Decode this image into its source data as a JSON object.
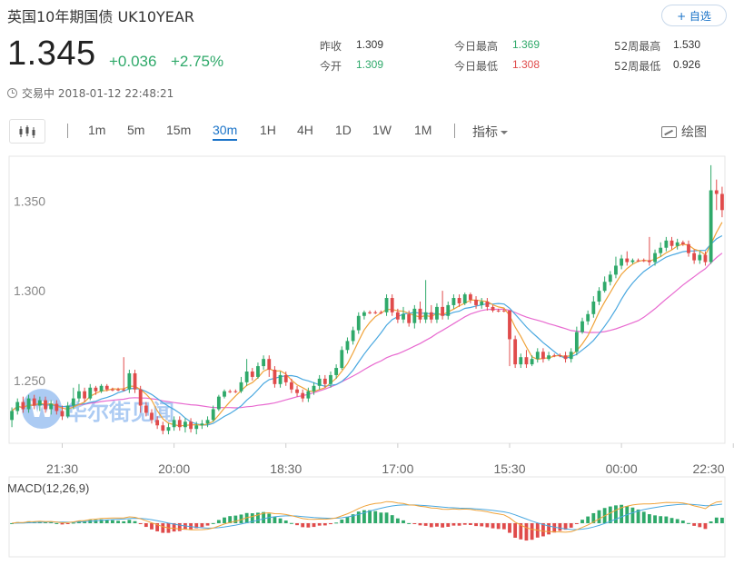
{
  "header": {
    "title": "英国10年期国债 UK10YEAR",
    "add_label": "+ 自选",
    "price": "1.345",
    "change": "+0.036",
    "change_pct": "+2.75%",
    "status": "交易中 2018-01-12 22:48:21"
  },
  "stats": [
    {
      "label": "昨收",
      "value": "1.309",
      "color": "dark"
    },
    {
      "label": "今开",
      "value": "1.309",
      "color": "green"
    },
    {
      "label": "今日最高",
      "value": "1.369",
      "color": "green"
    },
    {
      "label": "今日最低",
      "value": "1.308",
      "color": "red"
    },
    {
      "label": "52周最高",
      "value": "1.530",
      "color": "dark"
    },
    {
      "label": "52周最低",
      "value": "0.926",
      "color": "dark"
    }
  ],
  "toolbar": {
    "intervals": [
      "1m",
      "5m",
      "15m",
      "30m",
      "1H",
      "4H",
      "1D",
      "1W",
      "1M"
    ],
    "active_interval": "30m",
    "indicator_label": "指标",
    "draw_label": "绘图"
  },
  "watermark": "华尔街见闻",
  "colors": {
    "up": "#2fa96a",
    "down": "#e04b4b",
    "accent": "#1a73c8",
    "ma_fast": "#f0a33a",
    "ma_mid": "#4aa8e0",
    "ma_slow": "#e86ad0"
  },
  "chart_data": {
    "type": "candlestick",
    "y_ticks": [
      "1.250",
      "1.300",
      "1.350"
    ],
    "y_tick_values": [
      1.25,
      1.3,
      1.35
    ],
    "ylim": [
      1.215,
      1.375
    ],
    "x_tick_labels": [
      "21:30",
      "20:00",
      "18:30",
      "17:00",
      "15:30",
      "00:00",
      "22:30"
    ],
    "x_tick_index": [
      9,
      29,
      49,
      69,
      89,
      109,
      129
    ],
    "candles": [
      [
        1.228,
        1.233,
        1.224,
        1.235
      ],
      [
        1.233,
        1.238,
        1.231,
        1.24
      ],
      [
        1.238,
        1.234,
        1.232,
        1.241
      ],
      [
        1.234,
        1.24,
        1.232,
        1.242
      ],
      [
        1.24,
        1.236,
        1.234,
        1.242
      ],
      [
        1.236,
        1.239,
        1.233,
        1.241
      ],
      [
        1.239,
        1.234,
        1.232,
        1.241
      ],
      [
        1.234,
        1.237,
        1.231,
        1.239
      ],
      [
        1.237,
        1.233,
        1.231,
        1.239
      ],
      [
        1.233,
        1.23,
        1.228,
        1.236
      ],
      [
        1.23,
        1.236,
        1.229,
        1.238
      ],
      [
        1.236,
        1.24,
        1.234,
        1.246
      ],
      [
        1.24,
        1.244,
        1.238,
        1.248
      ],
      [
        1.244,
        1.24,
        1.238,
        1.246
      ],
      [
        1.24,
        1.246,
        1.239,
        1.248
      ],
      [
        1.246,
        1.244,
        1.242,
        1.247
      ],
      [
        1.244,
        1.247,
        1.243,
        1.248
      ],
      [
        1.247,
        1.245,
        1.244,
        1.248
      ],
      [
        1.245,
        1.245,
        1.244,
        1.246
      ],
      [
        1.245,
        1.245,
        1.244,
        1.246
      ],
      [
        1.245,
        1.245,
        1.244,
        1.263
      ],
      [
        1.245,
        1.254,
        1.243,
        1.256
      ],
      [
        1.254,
        1.245,
        1.243,
        1.256
      ],
      [
        1.245,
        1.236,
        1.232,
        1.247
      ],
      [
        1.236,
        1.232,
        1.23,
        1.238
      ],
      [
        1.232,
        1.228,
        1.226,
        1.234
      ],
      [
        1.228,
        1.225,
        1.223,
        1.23
      ],
      [
        1.225,
        1.222,
        1.22,
        1.227
      ],
      [
        1.222,
        1.224,
        1.22,
        1.226
      ],
      [
        1.224,
        1.228,
        1.222,
        1.23
      ],
      [
        1.228,
        1.224,
        1.222,
        1.23
      ],
      [
        1.224,
        1.227,
        1.221,
        1.229
      ],
      [
        1.227,
        1.223,
        1.221,
        1.229
      ],
      [
        1.223,
        1.225,
        1.22,
        1.227
      ],
      [
        1.225,
        1.226,
        1.223,
        1.228
      ],
      [
        1.226,
        1.228,
        1.224,
        1.23
      ],
      [
        1.228,
        1.234,
        1.227,
        1.236
      ],
      [
        1.234,
        1.241,
        1.233,
        1.242
      ],
      [
        1.241,
        1.244,
        1.24,
        1.245
      ],
      [
        1.244,
        1.244,
        1.243,
        1.245
      ],
      [
        1.244,
        1.244,
        1.243,
        1.245
      ],
      [
        1.244,
        1.249,
        1.243,
        1.252
      ],
      [
        1.249,
        1.255,
        1.247,
        1.262
      ],
      [
        1.255,
        1.252,
        1.25,
        1.257
      ],
      [
        1.252,
        1.258,
        1.251,
        1.26
      ],
      [
        1.258,
        1.262,
        1.256,
        1.264
      ],
      [
        1.262,
        1.256,
        1.252,
        1.264
      ],
      [
        1.256,
        1.248,
        1.246,
        1.258
      ],
      [
        1.248,
        1.253,
        1.246,
        1.255
      ],
      [
        1.253,
        1.249,
        1.247,
        1.255
      ],
      [
        1.249,
        1.245,
        1.243,
        1.251
      ],
      [
        1.245,
        1.243,
        1.241,
        1.247
      ],
      [
        1.243,
        1.24,
        1.238,
        1.245
      ],
      [
        1.24,
        1.244,
        1.238,
        1.246
      ],
      [
        1.244,
        1.247,
        1.242,
        1.249
      ],
      [
        1.247,
        1.251,
        1.245,
        1.253
      ],
      [
        1.251,
        1.248,
        1.246,
        1.253
      ],
      [
        1.248,
        1.253,
        1.246,
        1.255
      ],
      [
        1.253,
        1.257,
        1.251,
        1.259
      ],
      [
        1.257,
        1.267,
        1.256,
        1.269
      ],
      [
        1.267,
        1.272,
        1.265,
        1.274
      ],
      [
        1.272,
        1.278,
        1.27,
        1.28
      ],
      [
        1.278,
        1.286,
        1.276,
        1.288
      ],
      [
        1.286,
        1.288,
        1.284,
        1.289
      ],
      [
        1.288,
        1.288,
        1.287,
        1.289
      ],
      [
        1.288,
        1.288,
        1.287,
        1.289
      ],
      [
        1.288,
        1.288,
        1.287,
        1.289
      ],
      [
        1.288,
        1.296,
        1.286,
        1.298
      ],
      [
        1.296,
        1.288,
        1.286,
        1.298
      ],
      [
        1.288,
        1.284,
        1.282,
        1.29
      ],
      [
        1.284,
        1.287,
        1.282,
        1.291
      ],
      [
        1.287,
        1.282,
        1.28,
        1.289
      ],
      [
        1.282,
        1.29,
        1.279,
        1.292
      ],
      [
        1.29,
        1.284,
        1.282,
        1.294
      ],
      [
        1.284,
        1.288,
        1.282,
        1.306
      ],
      [
        1.288,
        1.284,
        1.282,
        1.292
      ],
      [
        1.284,
        1.291,
        1.282,
        1.293
      ],
      [
        1.291,
        1.286,
        1.284,
        1.3
      ],
      [
        1.286,
        1.292,
        1.284,
        1.294
      ],
      [
        1.292,
        1.296,
        1.29,
        1.298
      ],
      [
        1.296,
        1.293,
        1.291,
        1.298
      ],
      [
        1.293,
        1.298,
        1.292,
        1.299
      ],
      [
        1.298,
        1.295,
        1.293,
        1.299
      ],
      [
        1.295,
        1.292,
        1.29,
        1.297
      ],
      [
        1.292,
        1.294,
        1.29,
        1.296
      ],
      [
        1.294,
        1.291,
        1.289,
        1.296
      ],
      [
        1.291,
        1.289,
        1.288,
        1.292
      ],
      [
        1.289,
        1.289,
        1.288,
        1.29
      ],
      [
        1.289,
        1.289,
        1.288,
        1.29
      ],
      [
        1.289,
        1.273,
        1.258,
        1.289
      ],
      [
        1.273,
        1.259,
        1.257,
        1.275
      ],
      [
        1.259,
        1.263,
        1.257,
        1.265
      ],
      [
        1.263,
        1.259,
        1.257,
        1.267
      ],
      [
        1.259,
        1.262,
        1.258,
        1.264
      ],
      [
        1.262,
        1.266,
        1.26,
        1.268
      ],
      [
        1.266,
        1.262,
        1.26,
        1.268
      ],
      [
        1.262,
        1.264,
        1.261,
        1.266
      ],
      [
        1.264,
        1.264,
        1.263,
        1.265
      ],
      [
        1.264,
        1.264,
        1.263,
        1.265
      ],
      [
        1.264,
        1.262,
        1.26,
        1.266
      ],
      [
        1.262,
        1.266,
        1.26,
        1.268
      ],
      [
        1.266,
        1.277,
        1.264,
        1.28
      ],
      [
        1.277,
        1.283,
        1.276,
        1.285
      ],
      [
        1.283,
        1.287,
        1.281,
        1.289
      ],
      [
        1.287,
        1.294,
        1.285,
        1.297
      ],
      [
        1.294,
        1.3,
        1.292,
        1.302
      ],
      [
        1.3,
        1.305,
        1.299,
        1.308
      ],
      [
        1.305,
        1.309,
        1.303,
        1.311
      ],
      [
        1.309,
        1.314,
        1.307,
        1.319
      ],
      [
        1.314,
        1.318,
        1.312,
        1.32
      ],
      [
        1.318,
        1.316,
        1.314,
        1.322
      ],
      [
        1.316,
        1.317,
        1.315,
        1.318
      ],
      [
        1.317,
        1.317,
        1.316,
        1.318
      ],
      [
        1.317,
        1.317,
        1.316,
        1.318
      ],
      [
        1.317,
        1.316,
        1.314,
        1.33
      ],
      [
        1.316,
        1.321,
        1.314,
        1.323
      ],
      [
        1.321,
        1.324,
        1.319,
        1.327
      ],
      [
        1.324,
        1.328,
        1.322,
        1.33
      ],
      [
        1.328,
        1.325,
        1.323,
        1.33
      ],
      [
        1.325,
        1.327,
        1.323,
        1.329
      ],
      [
        1.327,
        1.326,
        1.325,
        1.328
      ],
      [
        1.326,
        1.321,
        1.319,
        1.328
      ],
      [
        1.321,
        1.317,
        1.315,
        1.323
      ],
      [
        1.317,
        1.32,
        1.315,
        1.322
      ],
      [
        1.32,
        1.316,
        1.314,
        1.322
      ],
      [
        1.316,
        1.356,
        1.315,
        1.37
      ],
      [
        1.356,
        1.354,
        1.345,
        1.362
      ],
      [
        1.354,
        1.345,
        1.341,
        1.358
      ]
    ],
    "macd_label": "MACD(12,26,9)"
  }
}
